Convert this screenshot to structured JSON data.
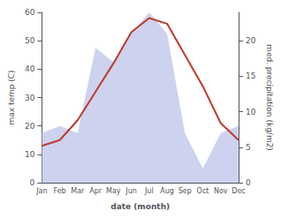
{
  "chart_data": {
    "type": "line",
    "xlabel": "date (month)",
    "ylabel": "max temp (C)",
    "y2label": "med. precipitation (kg/m2)",
    "categories": [
      "Jan",
      "Feb",
      "Mar",
      "Apr",
      "May",
      "Jun",
      "Jul",
      "Aug",
      "Sep",
      "Oct",
      "Nov",
      "Dec"
    ],
    "series": [
      {
        "type": "area",
        "color": "#b8bfe8",
        "axis": "y2",
        "values": [
          7,
          8,
          7,
          19,
          17,
          21,
          24,
          21,
          7,
          2,
          7,
          8
        ]
      },
      {
        "type": "line",
        "color": "#c0392b",
        "values": [
          13,
          15,
          22,
          32,
          42,
          53,
          58,
          56,
          45,
          34,
          21,
          15
        ]
      }
    ],
    "ylim": [
      0,
      60
    ],
    "yticks": [
      0,
      10,
      20,
      30,
      40,
      50,
      60
    ],
    "y2lim": [
      0,
      24
    ],
    "y2ticks": [
      0,
      5,
      10,
      15,
      20
    ],
    "grid": false
  }
}
